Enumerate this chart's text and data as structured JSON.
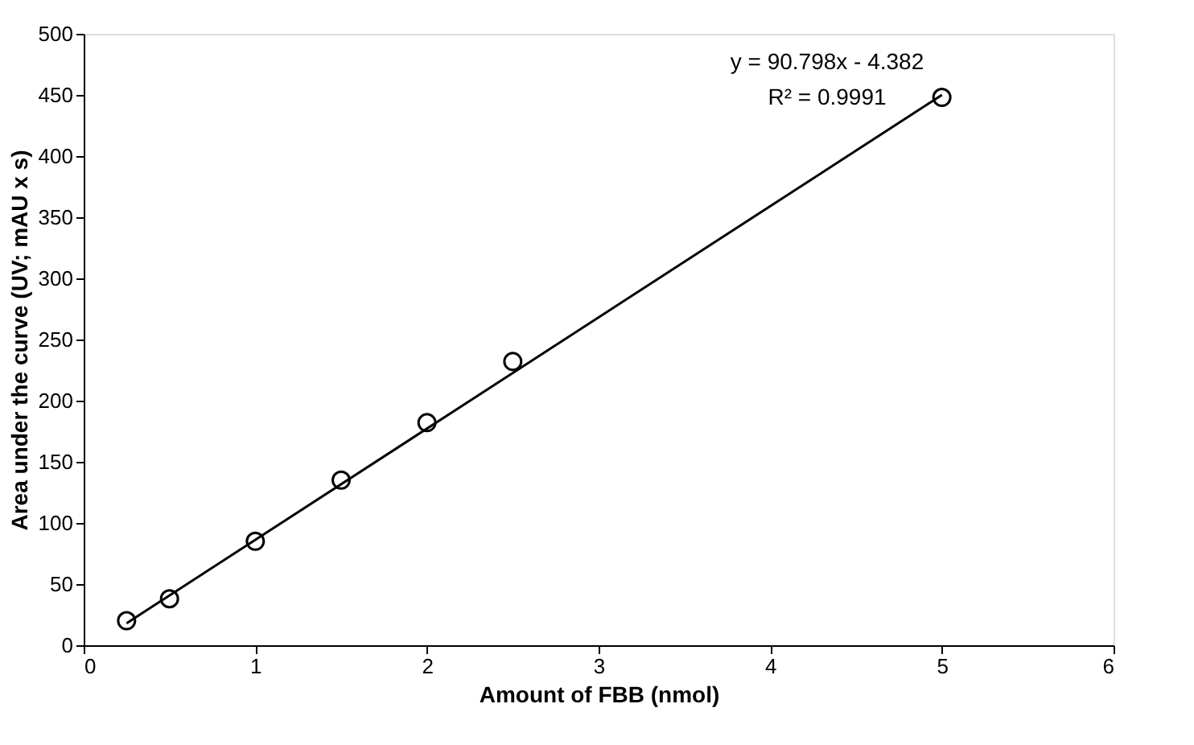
{
  "chart_data": {
    "type": "scatter",
    "xlabel": "Amount of FBB (nmol)",
    "ylabel": "Area under the curve (UV; mAU x s)",
    "series": [
      {
        "color": "#000000",
        "marker": "circle",
        "x": [
          0.25,
          0.5,
          1,
          1.5,
          2,
          2.5,
          5
        ],
        "values": [
          20,
          38,
          85,
          135,
          182,
          232,
          448
        ]
      },
      {
        "type": "line",
        "color": "#000000",
        "line_style": "solid",
        "x": [
          0.25,
          5
        ],
        "values": [
          18,
          450
        ]
      }
    ],
    "annotations": [
      "y = 90.798x - 4.382",
      "R² = 0.9991"
    ],
    "xlim": [
      0,
      6
    ],
    "xticks": [
      0,
      1,
      2,
      3,
      4,
      5,
      6
    ],
    "ylim": [
      0,
      500
    ],
    "yticks": [
      0,
      50,
      100,
      150,
      200,
      250,
      300,
      350,
      400,
      450,
      500
    ],
    "grid": false
  }
}
